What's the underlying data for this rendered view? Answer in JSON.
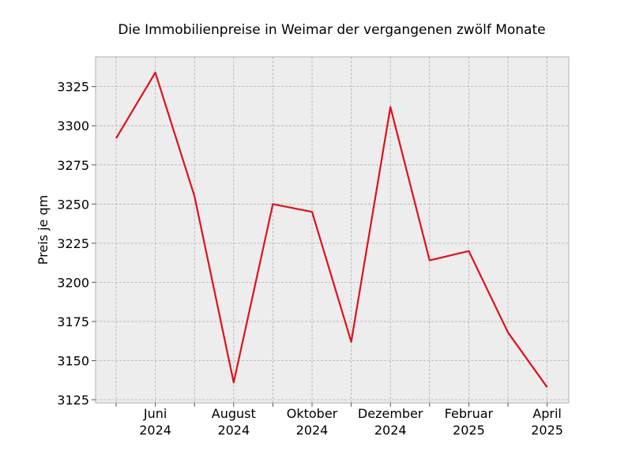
{
  "chart_data": {
    "type": "line",
    "title": "Die Immobilienpreise in Weimar der vergangenen zwölf Monate",
    "xlabel": "",
    "ylabel": "Preis je qm",
    "x": [
      "2024-05",
      "2024-06",
      "2024-07",
      "2024-08",
      "2024-09",
      "2024-10",
      "2024-11",
      "2024-12",
      "2025-01",
      "2025-02",
      "2025-03",
      "2025-04"
    ],
    "series": [
      {
        "values": [
          3292,
          3334,
          3255,
          3136,
          3250,
          3245,
          3162,
          3312,
          3214,
          3220,
          3168,
          3133
        ]
      }
    ],
    "x_tick_labels": [
      {
        "month": "Juni",
        "year": "2024"
      },
      {
        "month": "August",
        "year": "2024"
      },
      {
        "month": "Oktober",
        "year": "2024"
      },
      {
        "month": "Dezember",
        "year": "2024"
      },
      {
        "month": "Februar",
        "year": "2025"
      },
      {
        "month": "April",
        "year": "2025"
      }
    ],
    "y_ticks": [
      3125,
      3150,
      3175,
      3200,
      3225,
      3250,
      3275,
      3300,
      3325
    ],
    "ylim": [
      3123,
      3344
    ],
    "grid": true,
    "line_color": "#e0101c",
    "plot_background": "#ededed"
  }
}
